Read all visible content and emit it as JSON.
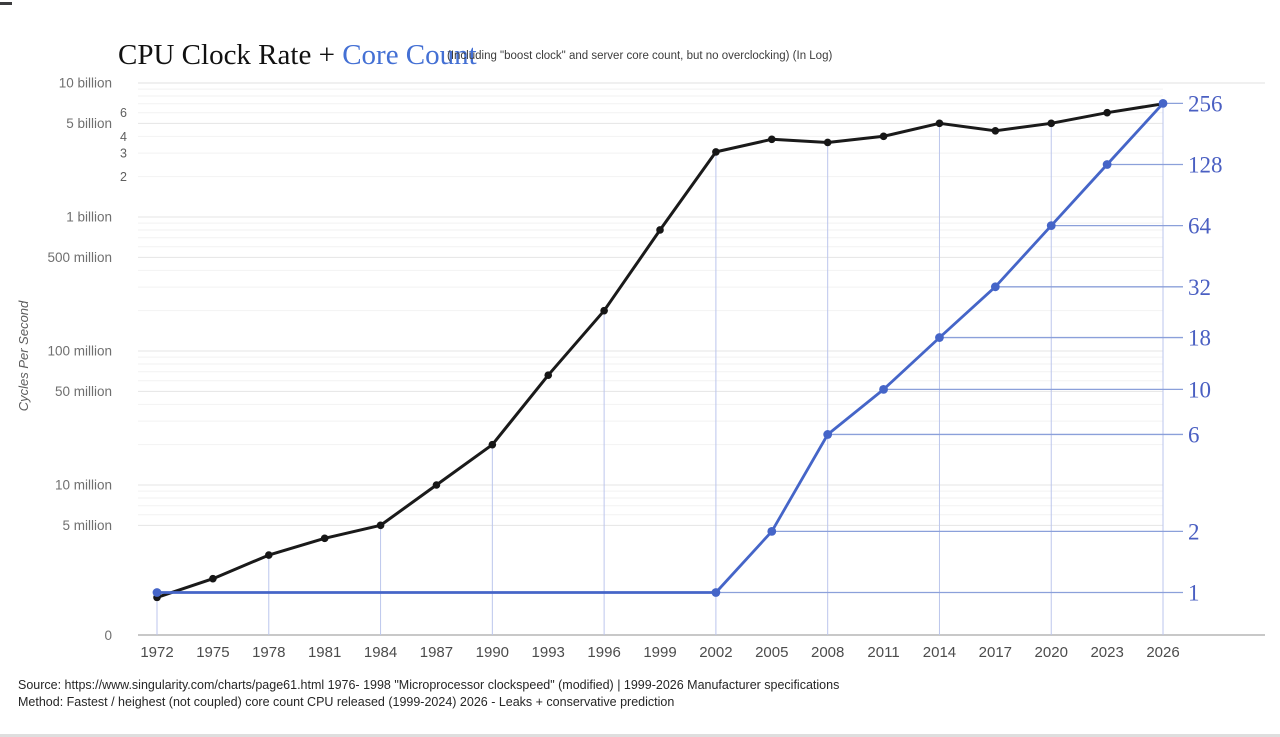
{
  "title": {
    "main": "CPU Clock Rate + ",
    "accent": "Core Count",
    "subtitle": "(Including \"boost clock\" and server core count, but no overclocking)  (In Log)"
  },
  "y_axis_left": {
    "axis_label": "Cycles Per Second",
    "zero_label": "0",
    "ticks": [
      {
        "label": "10 billion",
        "value": 10000000000,
        "minor": false
      },
      {
        "label": "6",
        "value": 6000000000,
        "minor": true
      },
      {
        "label": "5 billion",
        "value": 5000000000,
        "minor": false
      },
      {
        "label": "4",
        "value": 4000000000,
        "minor": true
      },
      {
        "label": "3",
        "value": 3000000000,
        "minor": true
      },
      {
        "label": "2",
        "value": 2000000000,
        "minor": true
      },
      {
        "label": "1 billion",
        "value": 1000000000,
        "minor": false
      },
      {
        "label": "500 million",
        "value": 500000000,
        "minor": false
      },
      {
        "label": "100 million",
        "value": 100000000,
        "minor": false
      },
      {
        "label": "50 million",
        "value": 50000000,
        "minor": false
      },
      {
        "label": "10 million",
        "value": 10000000,
        "minor": false
      },
      {
        "label": "5 million",
        "value": 5000000,
        "minor": false
      }
    ]
  },
  "y_axis_right": {
    "labels": [
      256,
      128,
      64,
      32,
      18,
      10,
      6,
      2,
      1
    ]
  },
  "x_axis": {
    "years": [
      1972,
      1975,
      1978,
      1981,
      1984,
      1987,
      1990,
      1993,
      1996,
      1999,
      2002,
      2005,
      2008,
      2011,
      2014,
      2017,
      2020,
      2023,
      2026
    ]
  },
  "chart_data": {
    "type": "line",
    "title": "CPU Clock Rate + Core Count",
    "subtitle": "(Including \"boost clock\" and server core count, but no overclocking)  (In Log)",
    "x": [
      1972,
      1975,
      1978,
      1981,
      1984,
      1987,
      1990,
      1993,
      1996,
      1999,
      2002,
      2005,
      2008,
      2011,
      2014,
      2017,
      2020,
      2023,
      2026
    ],
    "series": [
      {
        "name": "CPU Clock Rate",
        "axis": "left",
        "unit": "Hz",
        "color": "#1a1a1a",
        "values": [
          1450000,
          2000000,
          3000000,
          4000000,
          5000000,
          10000000,
          20000000,
          66000000,
          200000000,
          800000000,
          3060000000,
          3800000000,
          3600000000,
          4000000000,
          5000000000,
          4400000000,
          5000000000,
          6000000000,
          7000000000
        ]
      },
      {
        "name": "Core Count",
        "axis": "right",
        "unit": "cores",
        "color": "#4565c8",
        "values": [
          1,
          1,
          1,
          1,
          1,
          1,
          1,
          1,
          1,
          1,
          1,
          2,
          6,
          10,
          18,
          32,
          64,
          128,
          256
        ]
      }
    ],
    "left_axis": {
      "label": "Cycles Per Second",
      "scale": "log",
      "range_hz": [
        1000000,
        10000000000
      ]
    },
    "right_axis": {
      "scale": "log2",
      "range_cores": [
        1,
        256
      ],
      "ticks": [
        1,
        2,
        6,
        10,
        18,
        32,
        64,
        128,
        256
      ]
    },
    "grid": true,
    "legend_position": "none",
    "dropline_years": [
      1972,
      1978,
      1984,
      1990,
      1996,
      2002,
      2008,
      2014,
      2020,
      2026
    ]
  },
  "footer": {
    "source_line": "Source: https://www.singularity.com/charts/page61.html 1976- 1998 \"Microprocessor clockspeed\" (modified) | 1999-2026 Manufacturer specifications",
    "method_line": "Method: Fastest / heighest (not coupled) core count CPU released (1999-2024)  2026 - Leaks + conservative prediction"
  },
  "colors": {
    "accent_blue": "#4470d4",
    "line_black": "#1a1a1a",
    "line_blue": "#4565c8",
    "light_blue": "#bcc6ec",
    "connector_blue": "#8ba0da",
    "label_blue": "#4a5fc2",
    "grid_major": "#e5e5e5",
    "grid_minor": "#f2f2f2",
    "axis_gray": "#a8a8a8"
  }
}
